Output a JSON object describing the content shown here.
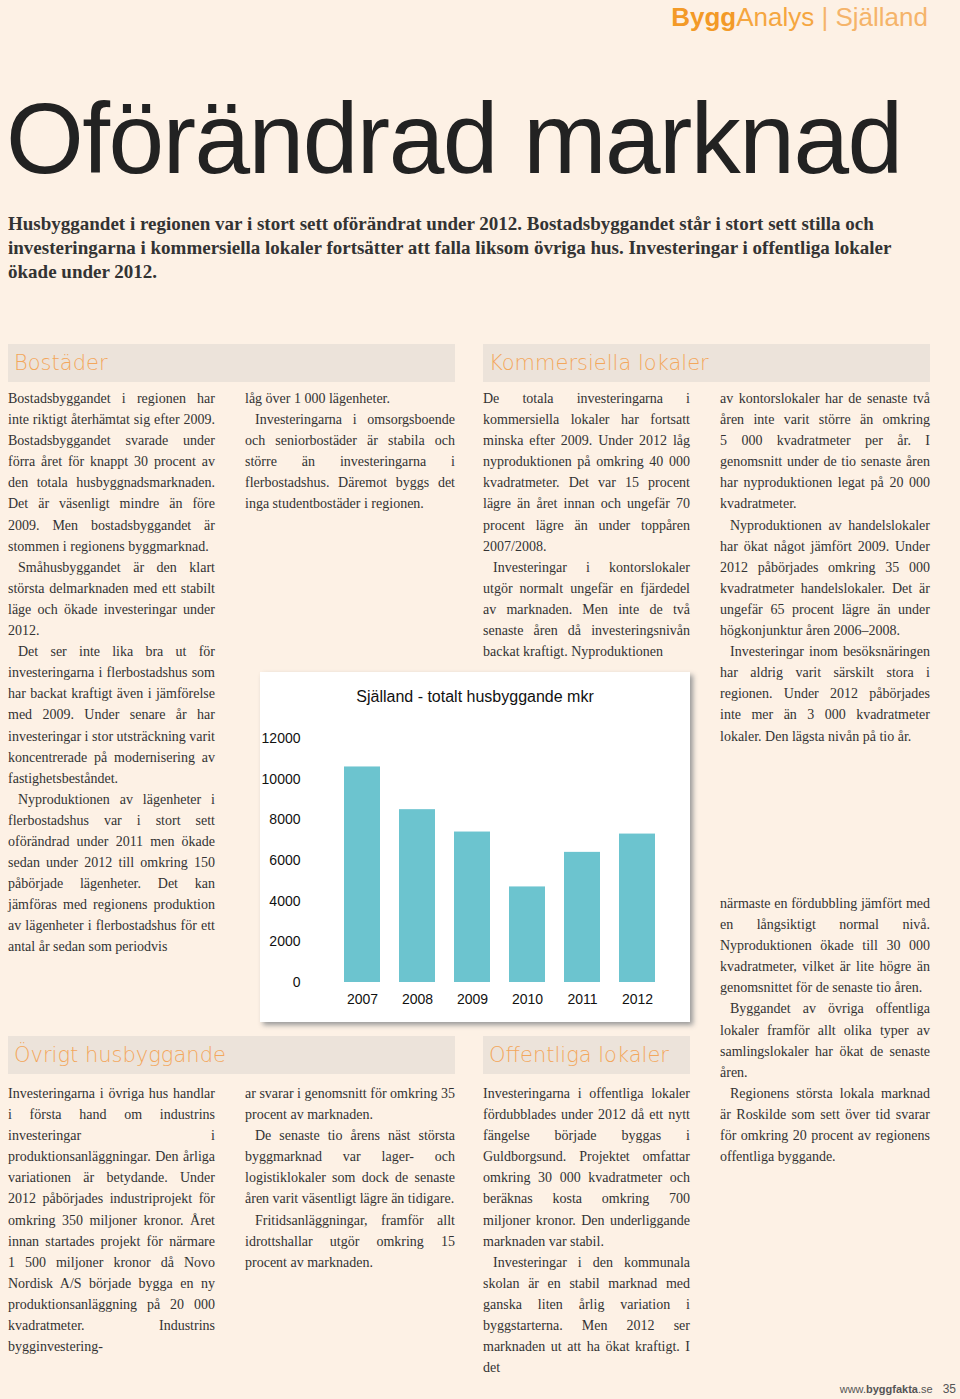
{
  "header": {
    "brand_bold": "Bygg",
    "brand": "Analys",
    "separator": "|",
    "region": "Själland"
  },
  "title": "Oförändrad marknad",
  "intro": "Husbyggandet i regionen var i stort sett oförändrat under 2012. Bostadsbyggandet står i stort sett stilla och investeringarna i kommersiella lokaler fortsätter att falla liksom övriga hus. Investeringar i offentliga lokaler ökade under 2012.",
  "sections": [
    {
      "heading": "Bostäder",
      "columns": [
        [
          "Bostadsbyggandet i regionen har inte riktigt återhämtat sig efter 2009. Bostadsbyggandet svarade under förra året för knappt 30 procent av den totala husbyggnadsmarknaden. Det är väsenligt mindre än före 2009. Men bostadsbyggandet är stommen i regionens byggmarknad.",
          "Småhusbyggandet är den klart största delmarknaden med ett stabilt läge och ökade investeringar under 2012.",
          "Det ser inte lika bra ut för investeringarna i flerbostadshus som har backat kraftigt även i jämförelse med 2009. Under senare år har investeringar i stor utsträckning varit koncentrerade på modernisering av fastighetsbeståndet.",
          "Nyproduktionen av lägenheter i flerbostadshus var i stort sett oförändrad under 2011 men ökade sedan under 2012 till omkring 150 påbörjade lägenheter. Det kan jämföras med regionens produktion av lägenheter i flerbostadshus för ett antal år sedan som periodvis"
        ],
        [
          "låg över 1 000 lägenheter.",
          "Investeringarna i omsorgsboende och seniorbostäder är stabila och större än investeringarna i flerbostadshus. Däremot byggs det inga studentbostäder i regionen."
        ]
      ]
    },
    {
      "heading": "Kommersiella lokaler",
      "columns": [
        [
          "De totala investeringarna i kommersiella lokaler har fortsatt minska efter 2009. Under 2012 låg nyproduktionen på omkring 40 000 kvadratmeter. Det var 15 procent lägre än året innan och ungefär 70 procent lägre än under toppåren 2007/2008.",
          "Investeringar i kontorslokaler utgör normalt ungefär en fjärdedel av marknaden. Men inte de två senaste åren då investeringsnivån backat kraftigt. Nyproduktionen"
        ],
        [
          "av kontorslokaler har de senaste två åren inte varit större än omkring 5 000 kvadratmeter per år. I genomsnitt under de tio senaste åren har nyproduktionen legat på 20 000 kvadratmeter.",
          "Nyproduktionen av handelslokaler har ökat något jämfört 2009. Under 2012 påbörjades omkring 35 000 kvadratmeter handelslokaler. Det är ungefär 65 procent lägre än under högkonjunktur åren 2006–2008.",
          "Investeringar inom besöksnäringen har aldrig varit särskilt stora i regionen. Under 2012 påbörjades inte mer än 3 000 kvadratmeter lokaler. Den lägsta nivån på tio år."
        ]
      ]
    },
    {
      "heading": "Övrigt husbyggande",
      "columns": [
        [
          "Investeringarna i övriga hus handlar i första hand om industrins investeringar i produktionsanläggningar. Den årliga variationen är betydande. Under 2012 påbörjades industriprojekt för omkring 350 miljoner kronor. Året innan startades projekt för närmare 1 500 miljoner kronor då Novo Nordisk A/S började bygga en ny produktionsanläggning på 20 000 kvadratmeter. Industrins bygginvestering-"
        ],
        [
          "ar svarar i genomsnitt för omkring 35 procent av marknaden.",
          "De senaste tio årens näst största byggmarknad var lager- och logistiklokaler som dock de senaste åren varit väsentligt lägre än tidigare.",
          "Fritidsanläggningar, framför allt idrottshallar utgör omkring 15 procent av marknaden."
        ]
      ]
    },
    {
      "heading": "Offentliga lokaler",
      "columns": [
        [
          "Investeringarna i offentliga lokaler fördubblades under 2012 då ett nytt fängelse började byggas i Guldborgsund. Projektet omfattar omkring 30 000 kvadratmeter och beräknas kosta omkring 700 miljoner kronor. Den underliggande marknaden var stabil.",
          "Investeringar i den kommunala skolan är en stabil marknad med ganska liten årlig variation i byggstarterna. Men 2012 ser marknaden ut att ha ökat kraftigt. I det"
        ],
        [
          "närmaste en fördubbling jämfört med en långsiktigt normal nivå. Nyproduktionen ökade till 30 000 kvadratmeter, vilket är lite högre än genomsnittet för de senaste tio åren.",
          "Byggandet av övriga offentliga lokaler framför allt olika typer av samlingslokaler har ökat de senaste åren.",
          "Regionens största lokala marknad är Roskilde som sett över tid svarar för omkring 20 procent av regionens offentliga byggande."
        ]
      ]
    }
  ],
  "chart_data": {
    "type": "bar",
    "title": "Själland - totalt husbyggande mkr",
    "categories": [
      "2007",
      "2008",
      "2009",
      "2010",
      "2011",
      "2012"
    ],
    "values": [
      10600,
      8500,
      7400,
      4700,
      6400,
      7300
    ],
    "color": "#6cc4cf",
    "ylim": [
      0,
      12000
    ],
    "yticks": [
      0,
      2000,
      4000,
      6000,
      8000,
      10000,
      12000
    ],
    "grid": false
  },
  "footer": {
    "url_prefix": "www.",
    "url_bold": "byggfakta",
    "url_suffix": ".se",
    "page": "35"
  }
}
